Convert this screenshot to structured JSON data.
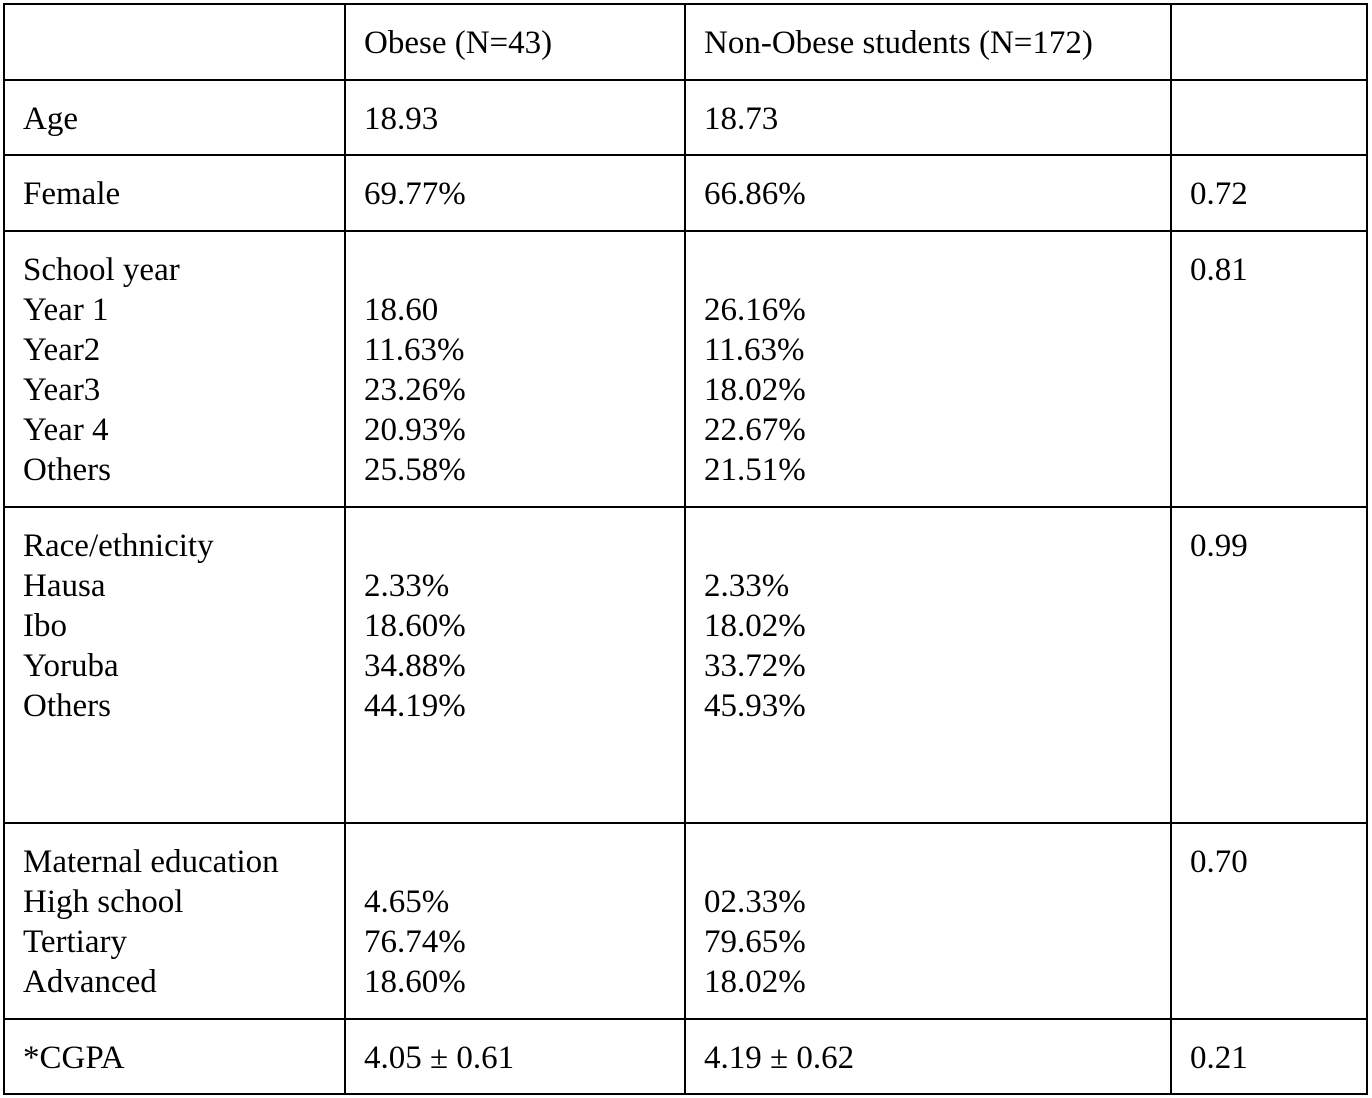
{
  "table": {
    "header": {
      "col1": "",
      "col2": "Obese (N=43)",
      "col3": "Non-Obese students (N=172)",
      "col4": ""
    },
    "rows": {
      "age": {
        "label": "Age",
        "obese": "18.93",
        "non_obese": "18.73",
        "p": ""
      },
      "female": {
        "label": "Female",
        "obese": "69.77%",
        "non_obese": "66.86%",
        "p": "0.72"
      },
      "school_year": {
        "label": "School year",
        "p": "0.81",
        "items": [
          {
            "label": "Year 1",
            "obese": "18.60",
            "non_obese": "26.16%"
          },
          {
            "label": "Year2",
            "obese": "11.63%",
            "non_obese": "11.63%"
          },
          {
            "label": "Year3",
            "obese": "23.26%",
            "non_obese": "18.02%"
          },
          {
            "label": "Year 4",
            "obese": "20.93%",
            "non_obese": "22.67%"
          },
          {
            "label": "Others",
            "obese": "25.58%",
            "non_obese": "21.51%"
          }
        ]
      },
      "race": {
        "label": "Race/ethnicity",
        "p": "0.99",
        "items": [
          {
            "label": "Hausa",
            "obese": "2.33%",
            "non_obese": "2.33%"
          },
          {
            "label": "Ibo",
            "obese": "18.60%",
            "non_obese": "18.02%"
          },
          {
            "label": "Yoruba",
            "obese": "34.88%",
            "non_obese": "33.72%"
          },
          {
            "label": "Others",
            "obese": "44.19%",
            "non_obese": "45.93%"
          }
        ]
      },
      "maternal_education": {
        "label": "Maternal education",
        "p": "0.70",
        "items": [
          {
            "label": "High school",
            "obese": "4.65%",
            "non_obese": "02.33%"
          },
          {
            "label": "Tertiary",
            "obese": "76.74%",
            "non_obese": "79.65%"
          },
          {
            "label": "Advanced",
            "obese": "18.60%",
            "non_obese": "18.02%"
          }
        ]
      },
      "cgpa": {
        "label": "*CGPA",
        "obese": "4.05 ± 0.61",
        "non_obese": "4.19 ± 0.62",
        "p": "0.21"
      }
    }
  }
}
